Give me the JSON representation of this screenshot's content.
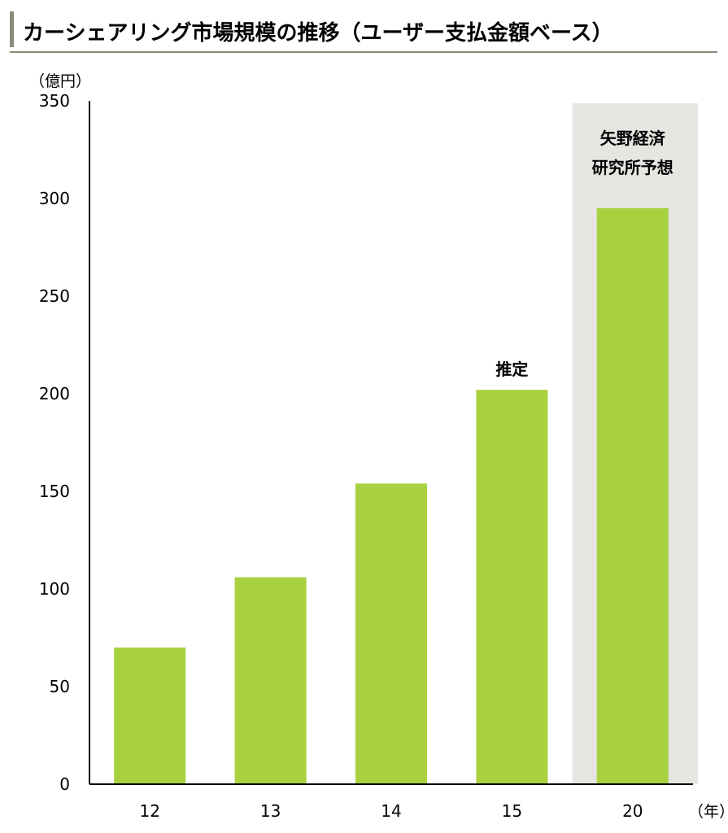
{
  "chart_data": {
    "type": "bar",
    "title": "カーシェアリング市場規模の推移（ユーザー支払金額ベース）",
    "ylabel": "（億円）",
    "xlabel": "（年）",
    "categories": [
      "12",
      "13",
      "14",
      "15",
      "20"
    ],
    "values": [
      70,
      106,
      154,
      202,
      295
    ],
    "ylim": [
      0,
      350
    ],
    "yticks": [
      0,
      50,
      100,
      150,
      200,
      250,
      300,
      350
    ],
    "grid": false,
    "bar_color": "#a8d140",
    "highlight_color": "#e6e5e1",
    "annotations": [
      {
        "category": "15",
        "text": "推定"
      },
      {
        "category": "20",
        "lines": [
          "矢野経済",
          "研究所予想"
        ]
      }
    ],
    "highlighted_category": "20"
  }
}
